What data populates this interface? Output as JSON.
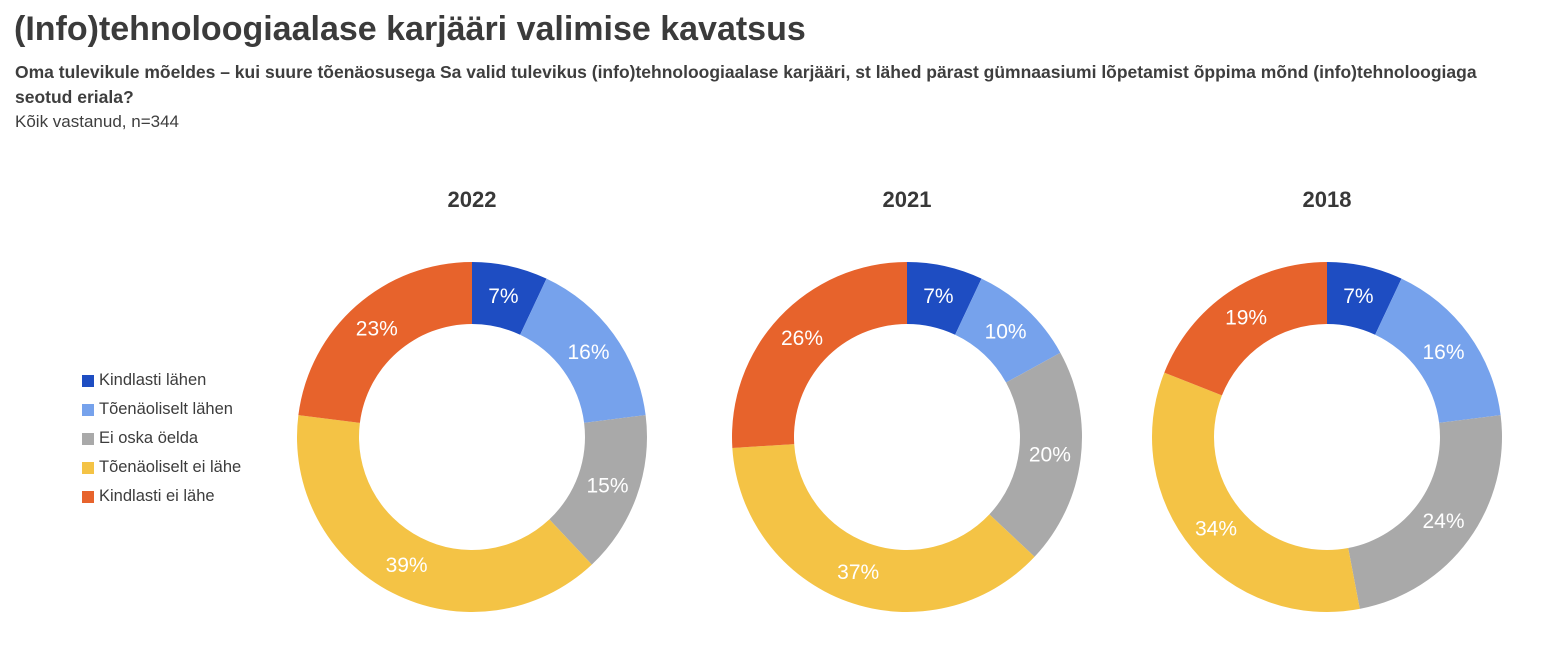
{
  "page": {
    "title": "(Info)tehnoloogiaalase karjääri valimise kavatsus",
    "subtitle": "Oma tulevikule mõeldes – kui suure tõenäosusega Sa valid tulevikus (info)tehnoloogiaalase karjääri, st lähed pärast gümnaasiumi lõpetamist õppima mõnd (info)tehnoloogiaga seotud eriala?",
    "note": "Kõik vastanud, n=344"
  },
  "chart_data": {
    "type": "pie",
    "variant": "donut",
    "legend_position": "left",
    "start_angle_deg": 0,
    "direction": "clockwise",
    "value_suffix": "%",
    "label_color": "#ffffff",
    "categories": [
      "Kindlasti lähen",
      "Tõenäoliselt lähen",
      "Ei oska öelda",
      "Tõenäoliselt ei lähe",
      "Kindlasti ei lähe"
    ],
    "colors": [
      "#1e4dc2",
      "#76a2ec",
      "#a9a9a9",
      "#f4c345",
      "#e7632c"
    ],
    "series": [
      {
        "name": "2022",
        "values": [
          7,
          16,
          15,
          39,
          23
        ]
      },
      {
        "name": "2021",
        "values": [
          7,
          10,
          20,
          37,
          26
        ]
      },
      {
        "name": "2018",
        "values": [
          7,
          16,
          24,
          34,
          19
        ]
      }
    ]
  }
}
